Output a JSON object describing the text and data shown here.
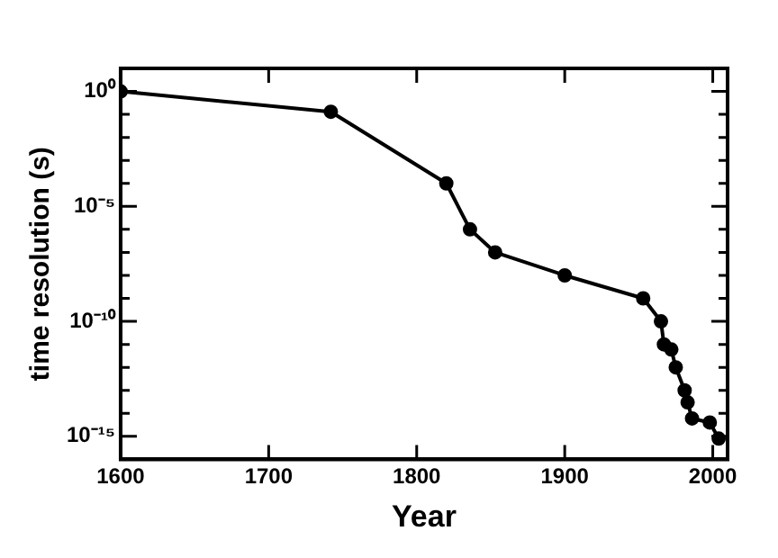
{
  "chart_data": {
    "type": "line",
    "xlabel": "Year",
    "ylabel": "time resolution (s)",
    "x": [
      1600,
      1742,
      1820,
      1836,
      1853,
      1900,
      1953,
      1965,
      1967,
      1972,
      1975,
      1981,
      1983,
      1986,
      1998,
      2004
    ],
    "series": [
      {
        "color": "#000000",
        "values": [
          1,
          0.13,
          0.0001,
          1e-06,
          1e-07,
          1e-08,
          1e-09,
          1e-10,
          1e-11,
          6e-12,
          1e-12,
          1e-13,
          3e-14,
          6e-15,
          4e-15,
          8e-16
        ]
      }
    ],
    "log": "y",
    "xlim": [
      1600,
      2010
    ],
    "ylim": [
      1e-16,
      10
    ],
    "xticks": [
      1600,
      1700,
      1800,
      1900,
      2000
    ],
    "yticks": [
      {
        "value": 1e-16,
        "label": null
      },
      {
        "value": 1e-15,
        "label": "10⁻¹⁵"
      },
      {
        "value": 1e-14,
        "label": null
      },
      {
        "value": 1e-13,
        "label": null
      },
      {
        "value": 1e-12,
        "label": null
      },
      {
        "value": 1e-11,
        "label": null
      },
      {
        "value": 1e-10,
        "label": "10⁻¹⁰"
      },
      {
        "value": 1e-09,
        "label": null
      },
      {
        "value": 1e-08,
        "label": null
      },
      {
        "value": 1e-07,
        "label": null
      },
      {
        "value": 1e-06,
        "label": null
      },
      {
        "value": 1e-05,
        "label": "10⁻⁵"
      },
      {
        "value": 0.0001,
        "label": null
      },
      {
        "value": 0.001,
        "label": null
      },
      {
        "value": 0.01,
        "label": null
      },
      {
        "value": 0.1,
        "label": null
      },
      {
        "value": 1,
        "label": "10⁰"
      },
      {
        "value": 10,
        "label": null
      }
    ],
    "grid": false,
    "legend": false,
    "marker": "circle",
    "line_style": "solid"
  }
}
